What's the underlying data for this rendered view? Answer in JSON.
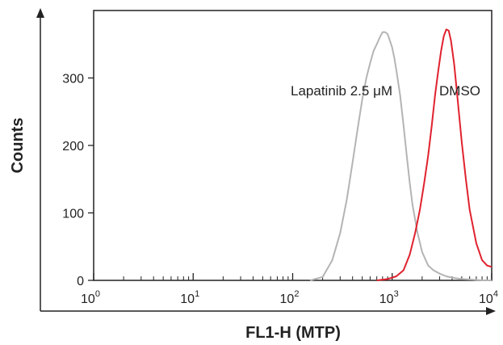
{
  "chart_data": {
    "type": "line",
    "title": "",
    "xlabel": "FL1-H (MTP)",
    "ylabel": "Counts",
    "x_scale": "log",
    "xlim": [
      1,
      10000
    ],
    "ylim": [
      0,
      400
    ],
    "x_ticks": [
      {
        "base": "10",
        "exp": "0"
      },
      {
        "base": "10",
        "exp": "1"
      },
      {
        "base": "10",
        "exp": "2"
      },
      {
        "base": "10",
        "exp": "3"
      },
      {
        "base": "10",
        "exp": "4"
      }
    ],
    "y_ticks": [
      "0",
      "100",
      "200",
      "300"
    ],
    "y_tick_values": [
      0,
      100,
      200,
      300
    ],
    "grid": false,
    "series": [
      {
        "name": "Lapatinib 2.5 μM",
        "color": "#b4b4b4",
        "x": [
          150,
          200,
          250,
          300,
          350,
          400,
          450,
          500,
          550,
          600,
          650,
          700,
          750,
          800,
          850,
          900,
          950,
          1000,
          1050,
          1100,
          1200,
          1300,
          1400,
          1500,
          1600,
          1800,
          2000,
          2300,
          2600,
          3000,
          3500,
          4000,
          5000,
          6500,
          8000,
          10000
        ],
        "y": [
          0,
          5,
          30,
          70,
          120,
          175,
          225,
          268,
          300,
          322,
          340,
          350,
          360,
          368,
          368,
          365,
          355,
          345,
          330,
          312,
          275,
          230,
          185,
          145,
          112,
          70,
          42,
          22,
          15,
          10,
          6,
          4,
          2,
          1,
          0,
          0
        ]
      },
      {
        "name": "DMSO",
        "color": "#e0222e",
        "x": [
          700,
          900,
          1100,
          1300,
          1500,
          1700,
          1900,
          2100,
          2300,
          2500,
          2700,
          2900,
          3100,
          3300,
          3500,
          3700,
          3900,
          4200,
          4500,
          5000,
          5500,
          6000,
          7000,
          8000,
          9000,
          10000
        ],
        "y": [
          0,
          2,
          6,
          15,
          38,
          70,
          105,
          145,
          185,
          230,
          275,
          310,
          340,
          362,
          372,
          370,
          355,
          320,
          275,
          205,
          150,
          105,
          55,
          30,
          22,
          20
        ]
      }
    ],
    "annotations": [
      {
        "text": "Lapatinib 2.5 μM",
        "series": 0
      },
      {
        "text": "DMSO",
        "series": 1
      }
    ],
    "legend": "none"
  }
}
